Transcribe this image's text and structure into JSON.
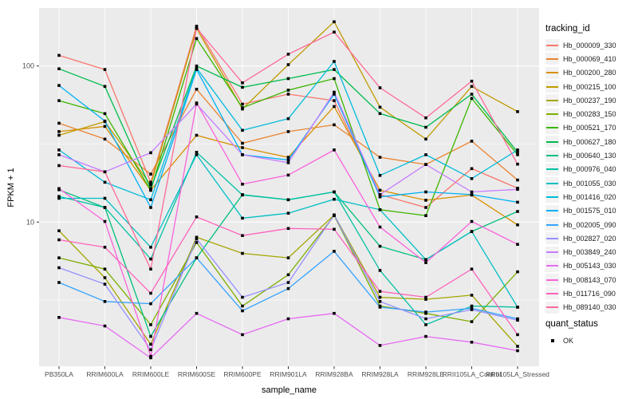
{
  "axes": {
    "x_title": "sample_name",
    "y_title": "FPKM + 1",
    "y_scale": "log10",
    "y_ticks": [
      "100",
      "10"
    ],
    "y_tick_values": [
      100,
      10
    ],
    "y_minor_values": [
      31.623,
      3.1623
    ]
  },
  "legend": {
    "tracking_title": "tracking_id",
    "quant_title": "quant_status",
    "quant_items": [
      {
        "label": "OK",
        "marker": "black-square"
      }
    ]
  },
  "colors": {
    "panel_bg": "#EBEBEB",
    "grid": "#FFFFFF",
    "tick_label": "#4D4D4D",
    "axis_title": "#000000",
    "point": "#000000",
    "legend_key_bg": "#F2F2F2"
  },
  "chart_data": {
    "type": "line",
    "title": "",
    "xlabel": "sample_name",
    "ylabel": "FPKM + 1",
    "y_scale": "log10",
    "ylim": [
      1.2,
      235
    ],
    "grid": true,
    "legend_position": "right",
    "point_marker": "filled-black-square",
    "point_meaning": "quant_status = OK",
    "categories": [
      "PB350LA",
      "RRIM600LA",
      "RRIM600LE",
      "RRIM600SE",
      "RRIM600PE",
      "RRIM901LA",
      "RRIM928BA",
      "RRIM928LA",
      "RRIM928LE",
      "RRII105LA_Control",
      "RRII105LA_Stressed"
    ],
    "series": [
      {
        "name": "Hb_000009_330",
        "color": "#F8766D",
        "values": [
          117,
          95,
          18,
          180,
          57,
          66,
          60,
          15,
          12.4,
          22,
          16.5
        ]
      },
      {
        "name": "Hb_000069_410",
        "color": "#EA8331",
        "values": [
          43,
          34,
          20.3,
          71,
          32,
          38,
          42,
          26,
          23.4,
          33,
          18.6
        ]
      },
      {
        "name": "Hb_000200_280",
        "color": "#D89000",
        "values": [
          38,
          41,
          16,
          36,
          30,
          26,
          55,
          16,
          13.8,
          14.9,
          9.6
        ]
      },
      {
        "name": "Hb_000215_100",
        "color": "#C09B00",
        "values": [
          36,
          44,
          17.3,
          174,
          53,
          102,
          192,
          54.5,
          34,
          74,
          51
        ]
      },
      {
        "name": "Hb_000237_190",
        "color": "#A3A500",
        "values": [
          8.8,
          4.4,
          1.65,
          8,
          6.3,
          5.9,
          11.1,
          3.3,
          3.2,
          3.4,
          1.6
        ]
      },
      {
        "name": "Hb_000283_150",
        "color": "#7CAE00",
        "values": [
          5.9,
          5,
          2.2,
          7.4,
          2.9,
          4.6,
          11,
          2.9,
          2.6,
          2.3,
          4.8
        ]
      },
      {
        "name": "Hb_000521_170",
        "color": "#39B600",
        "values": [
          60,
          49.5,
          16,
          150,
          54,
          70,
          83,
          12,
          11,
          62,
          27
        ]
      },
      {
        "name": "Hb_000627_180",
        "color": "#00BB4E",
        "values": [
          96,
          74,
          16.4,
          100,
          73,
          83,
          95,
          49.6,
          40.5,
          66,
          28
        ]
      },
      {
        "name": "Hb_000640_130",
        "color": "#00BF7D",
        "values": [
          16.1,
          12.4,
          1.85,
          5.9,
          15,
          13.9,
          15.6,
          7,
          5.75,
          8.7,
          11.7
        ]
      },
      {
        "name": "Hb_000976_040",
        "color": "#00C1A3",
        "values": [
          14.6,
          12.4,
          5.8,
          28,
          14.9,
          13.9,
          15.6,
          4.9,
          2.2,
          2.9,
          2.85
        ]
      },
      {
        "name": "Hb_001055_030",
        "color": "#00BFC4",
        "values": [
          14.2,
          14.2,
          6.9,
          27,
          10.6,
          11.4,
          14,
          12,
          5.75,
          8.7,
          2.85
        ]
      },
      {
        "name": "Hb_001416_020",
        "color": "#00BBDA",
        "values": [
          29,
          18,
          13.9,
          97,
          38.7,
          46,
          107,
          19.9,
          27,
          19,
          29
        ]
      },
      {
        "name": "Hb_001575_010",
        "color": "#00B0F6",
        "values": [
          75,
          44.4,
          12.4,
          95,
          27,
          25,
          66,
          14.5,
          15.6,
          15,
          13.4
        ]
      },
      {
        "name": "Hb_002005_090",
        "color": "#35A2FF",
        "values": [
          4.1,
          3.1,
          3,
          5.9,
          2.7,
          3.75,
          6.5,
          2.85,
          2.65,
          2.8,
          2.4
        ]
      },
      {
        "name": "Hb_002827_020",
        "color": "#9590FF",
        "values": [
          5.1,
          4,
          1.52,
          7.8,
          3.3,
          4.1,
          11.1,
          3.1,
          2.4,
          2.75,
          2.35
        ]
      },
      {
        "name": "Hb_003849_240",
        "color": "#C77CFF",
        "values": [
          27,
          21,
          27.8,
          57,
          27,
          24,
          68,
          15,
          23.4,
          15.6,
          16.2
        ]
      },
      {
        "name": "Hb_005143_030",
        "color": "#E76BF3",
        "values": [
          2.45,
          2.16,
          1.35,
          2.6,
          1.9,
          2.4,
          2.6,
          1.62,
          1.85,
          1.7,
          1.5
        ]
      },
      {
        "name": "Hb_008143_070",
        "color": "#FA62DB",
        "values": [
          16.4,
          10.1,
          1.38,
          58,
          17.5,
          20,
          29,
          9.3,
          5.5,
          10.1,
          7.2
        ]
      },
      {
        "name": "Hb_011716_090",
        "color": "#FF62BC",
        "values": [
          7.7,
          6.9,
          3.5,
          10.8,
          8.2,
          9.1,
          9,
          3.6,
          3.3,
          5,
          1.9
        ]
      },
      {
        "name": "Hb_089140_030",
        "color": "#FF6A98",
        "values": [
          23,
          21,
          5,
          175,
          78,
          119,
          165,
          72.5,
          46.5,
          80,
          23.5
        ]
      }
    ]
  }
}
